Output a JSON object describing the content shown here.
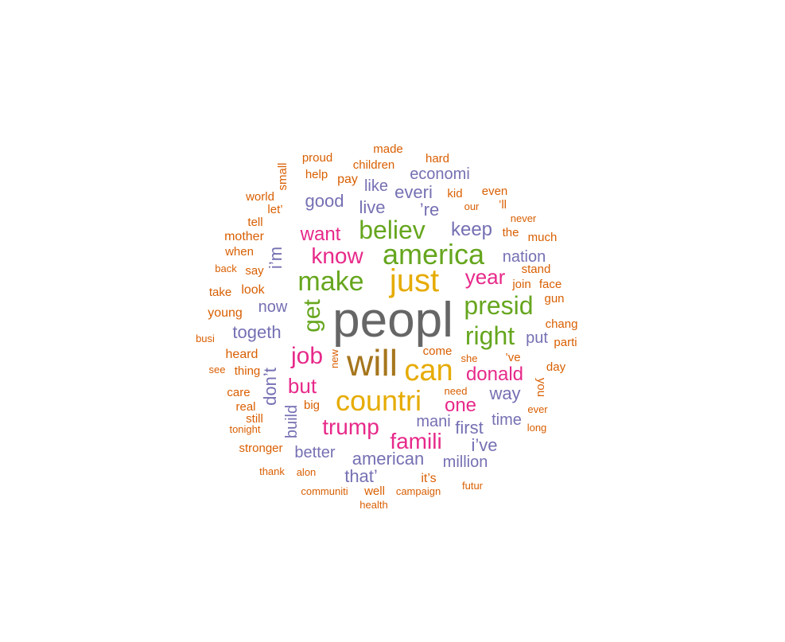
{
  "chart_data": {
    "type": "wordcloud",
    "title": "",
    "colors": {
      "gray": "#666666",
      "goldenrod": "#a6761d",
      "yellow": "#e6ab02",
      "green": "#66a61e",
      "magenta": "#e7298a",
      "purple": "#7570b3",
      "orange": "#d95f02"
    },
    "words": [
      {
        "text": "peopl",
        "weight": 10,
        "color": "gray"
      },
      {
        "text": "will",
        "weight": 7,
        "color": "goldenrod"
      },
      {
        "text": "can",
        "weight": 6,
        "color": "yellow"
      },
      {
        "text": "just",
        "weight": 6,
        "color": "yellow"
      },
      {
        "text": "countri",
        "weight": 6,
        "color": "yellow"
      },
      {
        "text": "america",
        "weight": 6,
        "color": "green"
      },
      {
        "text": "make",
        "weight": 5,
        "color": "green"
      },
      {
        "text": "believ",
        "weight": 5,
        "color": "green"
      },
      {
        "text": "presid",
        "weight": 5,
        "color": "green"
      },
      {
        "text": "right",
        "weight": 5,
        "color": "green"
      },
      {
        "text": "get",
        "weight": 4,
        "color": "green"
      },
      {
        "text": "job",
        "weight": 4,
        "color": "magenta"
      },
      {
        "text": "famili",
        "weight": 4,
        "color": "magenta"
      },
      {
        "text": "trump",
        "weight": 4,
        "color": "magenta"
      },
      {
        "text": "know",
        "weight": 4,
        "color": "magenta"
      },
      {
        "text": "want",
        "weight": 3,
        "color": "magenta"
      },
      {
        "text": "year",
        "weight": 3,
        "color": "magenta"
      },
      {
        "text": "donald",
        "weight": 3,
        "color": "magenta"
      },
      {
        "text": "but",
        "weight": 3,
        "color": "magenta"
      },
      {
        "text": "one",
        "weight": 3,
        "color": "magenta"
      },
      {
        "text": "keep",
        "weight": 3,
        "color": "purple"
      },
      {
        "text": "nation",
        "weight": 2,
        "color": "purple"
      },
      {
        "text": "good",
        "weight": 3,
        "color": "purple"
      },
      {
        "text": "everi",
        "weight": 3,
        "color": "purple"
      },
      {
        "text": "economi",
        "weight": 2,
        "color": "purple"
      },
      {
        "text": "like",
        "weight": 2,
        "color": "purple"
      },
      {
        "text": "live",
        "weight": 3,
        "color": "purple"
      },
      {
        "text": "’re",
        "weight": 3,
        "color": "purple"
      },
      {
        "text": "i’m",
        "weight": 3,
        "color": "purple"
      },
      {
        "text": "now",
        "weight": 2,
        "color": "purple"
      },
      {
        "text": "togeth",
        "weight": 3,
        "color": "purple"
      },
      {
        "text": "don’t",
        "weight": 3,
        "color": "purple"
      },
      {
        "text": "put",
        "weight": 2,
        "color": "purple"
      },
      {
        "text": "way",
        "weight": 3,
        "color": "purple"
      },
      {
        "text": "mani",
        "weight": 2,
        "color": "purple"
      },
      {
        "text": "first",
        "weight": 3,
        "color": "purple"
      },
      {
        "text": "time",
        "weight": 2,
        "color": "purple"
      },
      {
        "text": "i’ve",
        "weight": 3,
        "color": "purple"
      },
      {
        "text": "build",
        "weight": 2,
        "color": "purple"
      },
      {
        "text": "better",
        "weight": 2,
        "color": "purple"
      },
      {
        "text": "american",
        "weight": 3,
        "color": "purple"
      },
      {
        "text": "million",
        "weight": 2,
        "color": "purple"
      },
      {
        "text": "that’",
        "weight": 3,
        "color": "purple"
      },
      {
        "text": "proud",
        "weight": 1,
        "color": "orange"
      },
      {
        "text": "made",
        "weight": 1,
        "color": "orange"
      },
      {
        "text": "hard",
        "weight": 1,
        "color": "orange"
      },
      {
        "text": "small",
        "weight": 1,
        "color": "orange"
      },
      {
        "text": "help",
        "weight": 1,
        "color": "orange"
      },
      {
        "text": "children",
        "weight": 1,
        "color": "orange"
      },
      {
        "text": "pay",
        "weight": 1,
        "color": "orange"
      },
      {
        "text": "world",
        "weight": 1,
        "color": "orange"
      },
      {
        "text": "let’",
        "weight": 1,
        "color": "orange"
      },
      {
        "text": "kid",
        "weight": 1,
        "color": "orange"
      },
      {
        "text": "even",
        "weight": 1,
        "color": "orange"
      },
      {
        "text": "our",
        "weight": 0,
        "color": "orange"
      },
      {
        "text": "’ll",
        "weight": 1,
        "color": "orange"
      },
      {
        "text": "never",
        "weight": 0,
        "color": "orange"
      },
      {
        "text": "tell",
        "weight": 1,
        "color": "orange"
      },
      {
        "text": "mother",
        "weight": 1,
        "color": "orange"
      },
      {
        "text": "the",
        "weight": 1,
        "color": "orange"
      },
      {
        "text": "much",
        "weight": 1,
        "color": "orange"
      },
      {
        "text": "when",
        "weight": 1,
        "color": "orange"
      },
      {
        "text": "back",
        "weight": 0,
        "color": "orange"
      },
      {
        "text": "say",
        "weight": 1,
        "color": "orange"
      },
      {
        "text": "stand",
        "weight": 1,
        "color": "orange"
      },
      {
        "text": "join",
        "weight": 1,
        "color": "orange"
      },
      {
        "text": "face",
        "weight": 1,
        "color": "orange"
      },
      {
        "text": "take",
        "weight": 1,
        "color": "orange"
      },
      {
        "text": "look",
        "weight": 1,
        "color": "orange"
      },
      {
        "text": "gun",
        "weight": 1,
        "color": "orange"
      },
      {
        "text": "young",
        "weight": 1,
        "color": "orange"
      },
      {
        "text": "chang",
        "weight": 1,
        "color": "orange"
      },
      {
        "text": "busi",
        "weight": 0,
        "color": "orange"
      },
      {
        "text": "parti",
        "weight": 0,
        "color": "orange"
      },
      {
        "text": "heard",
        "weight": 1,
        "color": "orange"
      },
      {
        "text": "new",
        "weight": 0,
        "color": "orange"
      },
      {
        "text": "come",
        "weight": 1,
        "color": "orange"
      },
      {
        "text": "’ve",
        "weight": 1,
        "color": "orange"
      },
      {
        "text": "see",
        "weight": 0,
        "color": "orange"
      },
      {
        "text": "thing",
        "weight": 1,
        "color": "orange"
      },
      {
        "text": "she",
        "weight": 0,
        "color": "orange"
      },
      {
        "text": "day",
        "weight": 1,
        "color": "orange"
      },
      {
        "text": "care",
        "weight": 1,
        "color": "orange"
      },
      {
        "text": "need",
        "weight": 0,
        "color": "orange"
      },
      {
        "text": "you",
        "weight": 1,
        "color": "orange"
      },
      {
        "text": "real",
        "weight": 1,
        "color": "orange"
      },
      {
        "text": "big",
        "weight": 1,
        "color": "orange"
      },
      {
        "text": "ever",
        "weight": 0,
        "color": "orange"
      },
      {
        "text": "still",
        "weight": 1,
        "color": "orange"
      },
      {
        "text": "tonight",
        "weight": 0,
        "color": "orange"
      },
      {
        "text": "long",
        "weight": 0,
        "color": "orange"
      },
      {
        "text": "stronger",
        "weight": 1,
        "color": "orange"
      },
      {
        "text": "thank",
        "weight": 0,
        "color": "orange"
      },
      {
        "text": "alon",
        "weight": 0,
        "color": "orange"
      },
      {
        "text": "it’s",
        "weight": 1,
        "color": "orange"
      },
      {
        "text": "futur",
        "weight": 0,
        "color": "orange"
      },
      {
        "text": "communiti",
        "weight": 0,
        "color": "orange"
      },
      {
        "text": "well",
        "weight": 1,
        "color": "orange"
      },
      {
        "text": "campaign",
        "weight": 0,
        "color": "orange"
      },
      {
        "text": "health",
        "weight": 0,
        "color": "orange"
      }
    ]
  }
}
